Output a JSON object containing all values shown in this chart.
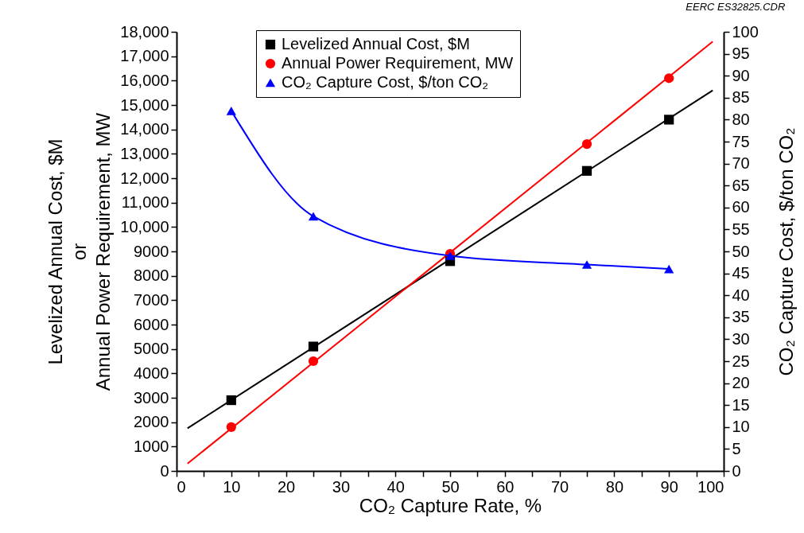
{
  "chart_data": {
    "type": "scatter",
    "xlabel": "CO₂ Capture Rate, %",
    "ylabel": "Levelized Annual Cost, $M\nor\nAnnual Power Requirement, MW",
    "y2label": "CO₂ Capture Cost, $/ton CO₂",
    "annotations": [
      "EERC ES32825.CDR"
    ],
    "xlim": [
      0,
      100
    ],
    "xticks": [
      0,
      {
        "value": 5,
        "label": null
      },
      10,
      {
        "value": 15,
        "label": null
      },
      20,
      {
        "value": 25,
        "label": null
      },
      30,
      {
        "value": 35,
        "label": null
      },
      40,
      {
        "value": 45,
        "label": null
      },
      50,
      {
        "value": 55,
        "label": null
      },
      60,
      {
        "value": 65,
        "label": null
      },
      70,
      {
        "value": 75,
        "label": null
      },
      80,
      {
        "value": 85,
        "label": null
      },
      90,
      {
        "value": 95,
        "label": null
      },
      100
    ],
    "ylim": [
      0,
      18000
    ],
    "yticks": [
      0,
      1000,
      2000,
      3000,
      4000,
      5000,
      6000,
      7000,
      8000,
      9000,
      {
        "value": 10000,
        "label": "10,000"
      },
      {
        "value": 11000,
        "label": "11,000"
      },
      {
        "value": 12000,
        "label": "12,000"
      },
      {
        "value": 13000,
        "label": "13,000"
      },
      {
        "value": 14000,
        "label": "14,000"
      },
      {
        "value": 15000,
        "label": "15,000"
      },
      {
        "value": 16000,
        "label": "16,000"
      },
      {
        "value": 17000,
        "label": "17,000"
      },
      {
        "value": 18000,
        "label": "18,000"
      }
    ],
    "y2lim": [
      0,
      100
    ],
    "y2ticks": [
      0,
      5,
      10,
      15,
      20,
      25,
      30,
      35,
      40,
      45,
      50,
      55,
      60,
      65,
      70,
      75,
      80,
      85,
      90,
      95,
      100
    ],
    "grid": false,
    "legend": "top",
    "series": [
      {
        "name": "Levelized Annual Cost, $M",
        "marker": "square",
        "color": "#000000",
        "x": [
          10,
          25,
          50,
          75,
          90
        ],
        "values": [
          2900,
          5100,
          8600,
          12300,
          14400
        ]
      },
      {
        "name": "Annual Power Requirement, MW",
        "marker": "circle",
        "color": "#ff0000",
        "x": [
          10,
          25,
          50,
          75,
          90
        ],
        "values": [
          1800,
          4500,
          8900,
          13400,
          16100
        ]
      },
      {
        "name": "CO₂ Capture Cost, $/ton CO₂",
        "type": "line",
        "marker": "triangle",
        "color": "#0000ff",
        "axis": "y2",
        "x": [
          10,
          25,
          50,
          75,
          90
        ],
        "values": [
          82,
          58,
          49,
          47,
          46
        ]
      },
      {
        "type": "line",
        "marker": "none",
        "color": "#000000",
        "x": [
          2,
          98
        ],
        "values": [
          1750,
          15600
        ]
      },
      {
        "type": "line",
        "marker": "none",
        "color": "#ff0000",
        "x": [
          2,
          98
        ],
        "values": [
          300,
          17600
        ]
      }
    ]
  }
}
